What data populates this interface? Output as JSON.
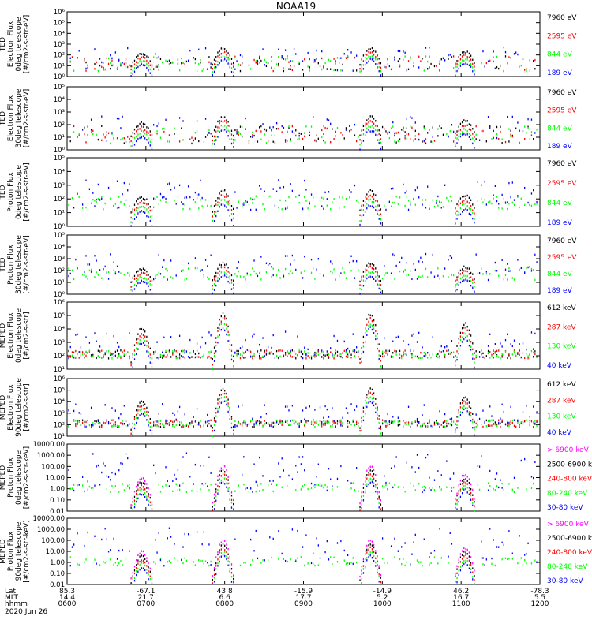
{
  "title": "NOAA19",
  "colors": {
    "black": "#000000",
    "red": "#ff0000",
    "green": "#00ff00",
    "blue": "#0000ff",
    "magenta": "#ff00ff"
  },
  "chart_data": [
    {
      "type": "scatter",
      "ylabel_lines": [
        "TED",
        "Electron Flux",
        "0deg telescope",
        "[#/cm2-s-str-eV]"
      ],
      "y_log_range": [
        0,
        6
      ],
      "y_tick_labels": [
        "10⁰",
        "10¹",
        "10²",
        "10³",
        "10⁴",
        "10⁵",
        "10⁶"
      ],
      "series": [
        {
          "name": "7960 eV",
          "color": "#000000"
        },
        {
          "name": "2595 eV",
          "color": "#ff0000"
        },
        {
          "name": "844 eV",
          "color": "#00ff00"
        },
        {
          "name": "189 eV",
          "color": "#0000ff"
        }
      ]
    },
    {
      "type": "scatter",
      "ylabel_lines": [
        "TED",
        "Electron Flux",
        "30deg telescope",
        "[#/cm2-s-str-eV]"
      ],
      "y_log_range": [
        0,
        5
      ],
      "y_tick_labels": [
        "10⁰",
        "10¹",
        "10²",
        "10³",
        "10⁴",
        "10⁵"
      ],
      "series": [
        {
          "name": "7960 eV",
          "color": "#000000"
        },
        {
          "name": "2595 eV",
          "color": "#ff0000"
        },
        {
          "name": "844 eV",
          "color": "#00ff00"
        },
        {
          "name": "189 eV",
          "color": "#0000ff"
        }
      ]
    },
    {
      "type": "scatter",
      "ylabel_lines": [
        "TED",
        "Proton Flux",
        "0deg telescope",
        "[#/cm2-s-str-eV]"
      ],
      "y_log_range": [
        0,
        5
      ],
      "y_tick_labels": [
        "10⁰",
        "10¹",
        "10²",
        "10³",
        "10⁴",
        "10⁵"
      ],
      "series": [
        {
          "name": "7960 eV",
          "color": "#000000"
        },
        {
          "name": "2595 eV",
          "color": "#ff0000"
        },
        {
          "name": "844 eV",
          "color": "#00ff00"
        },
        {
          "name": "189 eV",
          "color": "#0000ff"
        }
      ]
    },
    {
      "type": "scatter",
      "ylabel_lines": [
        "TED",
        "Proton Flux",
        "30deg telescope",
        "[#/cm2-s-str-eV]"
      ],
      "y_log_range": [
        0,
        5
      ],
      "y_tick_labels": [
        "10⁰",
        "10¹",
        "10²",
        "10³",
        "10⁴",
        "10⁵"
      ],
      "series": [
        {
          "name": "7960 eV",
          "color": "#000000"
        },
        {
          "name": "2595 eV",
          "color": "#ff0000"
        },
        {
          "name": "844 eV",
          "color": "#00ff00"
        },
        {
          "name": "189 eV",
          "color": "#0000ff"
        }
      ]
    },
    {
      "type": "scatter",
      "ylabel_lines": [
        "MEPED",
        "Electron Flux",
        "0deg telescope",
        "[#/cm2-s-str]"
      ],
      "y_log_range": [
        1,
        6
      ],
      "y_tick_labels": [
        "10¹",
        "10²",
        "10³",
        "10⁴",
        "10⁵",
        "10⁶"
      ],
      "series": [
        {
          "name": "612 keV",
          "color": "#000000"
        },
        {
          "name": "287 keV",
          "color": "#ff0000"
        },
        {
          "name": "130 keV",
          "color": "#00ff00"
        },
        {
          "name": "40 keV",
          "color": "#0000ff"
        }
      ]
    },
    {
      "type": "scatter",
      "ylabel_lines": [
        "MEPED",
        "Electron Flux",
        "90deg telescope",
        "[#/cm2-s-str]"
      ],
      "y_log_range": [
        1,
        6
      ],
      "y_tick_labels": [
        "10¹",
        "10²",
        "10³",
        "10⁴",
        "10⁵",
        "10⁶"
      ],
      "series": [
        {
          "name": "612 keV",
          "color": "#000000"
        },
        {
          "name": "287 keV",
          "color": "#ff0000"
        },
        {
          "name": "130 keV",
          "color": "#00ff00"
        },
        {
          "name": "40 keV",
          "color": "#0000ff"
        }
      ]
    },
    {
      "type": "scatter",
      "ylabel_lines": [
        "MEPED",
        "Proton Flux",
        "0deg telescope",
        "[#/cm2-s-str-keV]"
      ],
      "y_log_range": [
        -2,
        4
      ],
      "y_tick_labels": [
        "0.01",
        "0.10",
        "1.00",
        "10.00",
        "100.00",
        "1000.00",
        "10000.00"
      ],
      "series": [
        {
          "name": "> 6900 keV",
          "color": "#ff00ff"
        },
        {
          "name": "2500-6900 keV",
          "color": "#000000"
        },
        {
          "name": "240-800 keV",
          "color": "#ff0000"
        },
        {
          "name": "80-240 keV",
          "color": "#00ff00"
        },
        {
          "name": "30-80 keV",
          "color": "#0000ff"
        }
      ]
    },
    {
      "type": "scatter",
      "ylabel_lines": [
        "MEPED",
        "Proton Flux",
        "90deg telescope",
        "[#/cm2-s-str-keV]"
      ],
      "y_log_range": [
        -2,
        4
      ],
      "y_tick_labels": [
        "0.01",
        "0.10",
        "1.00",
        "10.00",
        "100.00",
        "1000.00",
        "10000.00"
      ],
      "series": [
        {
          "name": "> 6900 keV",
          "color": "#ff00ff"
        },
        {
          "name": "2500-6900 keV",
          "color": "#000000"
        },
        {
          "name": "240-800 keV",
          "color": "#ff0000"
        },
        {
          "name": "80-240 keV",
          "color": "#00ff00"
        },
        {
          "name": "30-80 keV",
          "color": "#0000ff"
        }
      ]
    }
  ],
  "x_axis": {
    "row_labels": [
      "Lat",
      "MLT",
      "hhmm"
    ],
    "date": "2020 Jun 26",
    "ticks": [
      {
        "lat": "85.3",
        "mlt": "14.4",
        "hhmm": "0600"
      },
      {
        "lat": "-67.1",
        "mlt": "21.7",
        "hhmm": "0700"
      },
      {
        "lat": "43.8",
        "mlt": "6.6",
        "hhmm": "0800"
      },
      {
        "lat": "-15.9",
        "mlt": "17.7",
        "hhmm": "0900"
      },
      {
        "lat": "-14.9",
        "mlt": "5.2",
        "hhmm": "1000"
      },
      {
        "lat": "46.2",
        "mlt": "16.7",
        "hhmm": "1100"
      },
      {
        "lat": "-78.3",
        "mlt": "5.5",
        "hhmm": "1200"
      }
    ]
  }
}
